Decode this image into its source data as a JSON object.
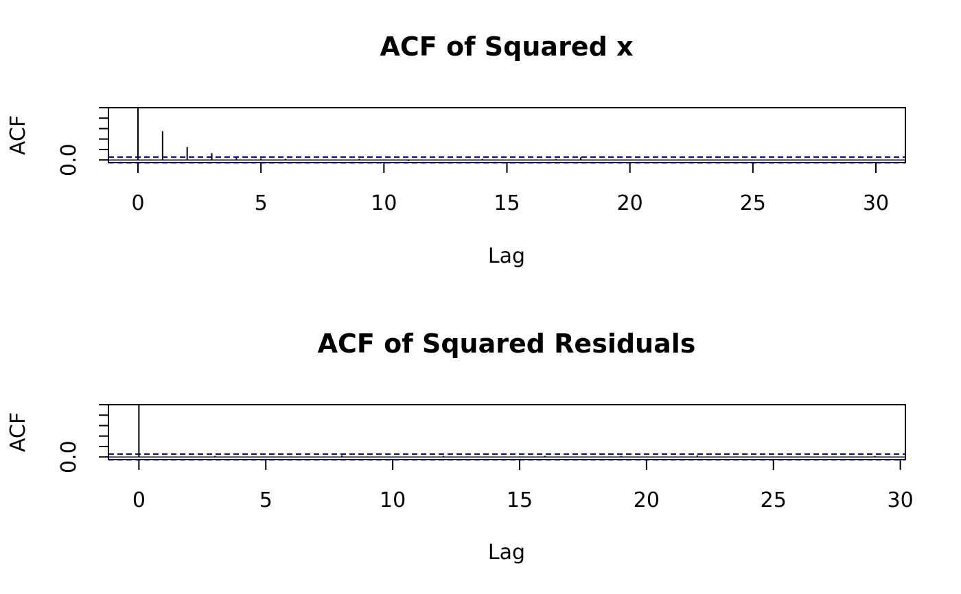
{
  "chart_data": [
    {
      "type": "bar",
      "title": "ACF of Squared x",
      "xlabel": "Lag",
      "ylabel": "ACF",
      "x_ticks": [
        0,
        5,
        10,
        15,
        20,
        25,
        30
      ],
      "y_ticks": [
        "0.0"
      ],
      "xlim": [
        -1.2,
        31.2
      ],
      "ylim": [
        -0.05,
        1.0
      ],
      "confidence_bound": 0.055,
      "grid": false,
      "lags": [
        0,
        1,
        2,
        3,
        4,
        5,
        6,
        7,
        8,
        9,
        10,
        11,
        12,
        13,
        14,
        15,
        16,
        17,
        18,
        19,
        20,
        21,
        22,
        23,
        24,
        25,
        26,
        27,
        28,
        29,
        30
      ],
      "values": [
        1.0,
        0.55,
        0.25,
        0.13,
        0.04,
        0.03,
        0.02,
        -0.01,
        0.01,
        0.02,
        0.01,
        -0.02,
        0.01,
        0.0,
        0.02,
        0.0,
        0.01,
        0.02,
        0.05,
        0.01,
        0.0,
        -0.01,
        0.01,
        0.0,
        0.01,
        0.0,
        -0.01,
        0.01,
        0.0,
        0.01,
        0.0
      ],
      "colors": {
        "bars": "#000000",
        "bound": "#0000cc",
        "axis": "#000000"
      }
    },
    {
      "type": "bar",
      "title": "ACF of Squared Residuals",
      "xlabel": "Lag",
      "ylabel": "ACF",
      "x_ticks": [
        0,
        5,
        10,
        15,
        20,
        25,
        30
      ],
      "y_ticks": [
        "0.0"
      ],
      "xlim": [
        -1.2,
        30.2
      ],
      "ylim": [
        -0.05,
        1.0
      ],
      "confidence_bound": 0.055,
      "grid": false,
      "lags": [
        0,
        1,
        2,
        3,
        4,
        5,
        6,
        7,
        8,
        9,
        10,
        11,
        12,
        13,
        14,
        15,
        16,
        17,
        18,
        19,
        20,
        21,
        22,
        23,
        24,
        25,
        26,
        27,
        28,
        29,
        30
      ],
      "values": [
        1.0,
        0.01,
        -0.01,
        0.02,
        0.0,
        -0.01,
        0.01,
        0.0,
        0.03,
        0.01,
        -0.01,
        0.01,
        0.02,
        -0.01,
        0.0,
        0.01,
        0.02,
        0.0,
        -0.01,
        0.02,
        0.01,
        0.0,
        0.03,
        -0.01,
        0.0,
        0.01,
        0.0,
        -0.01,
        0.01,
        0.02,
        0.0
      ],
      "colors": {
        "bars": "#000000",
        "bound": "#0000cc",
        "axis": "#000000"
      }
    }
  ]
}
